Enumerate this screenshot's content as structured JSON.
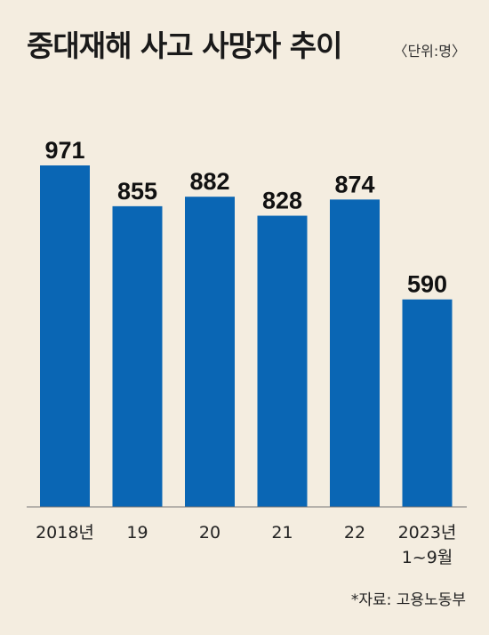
{
  "chart_data": {
    "type": "bar",
    "title": "중대재해 사고 사망자 추이",
    "unit": "〈단위:명〉",
    "categories": [
      [
        "2018년"
      ],
      [
        "19"
      ],
      [
        "20"
      ],
      [
        "21"
      ],
      [
        "22"
      ],
      [
        "2023년",
        "1~9월"
      ]
    ],
    "values": [
      971,
      855,
      882,
      828,
      874,
      590
    ],
    "ylim": [
      0,
      1000
    ],
    "grid": false,
    "bar_color": "#0a66b4",
    "background_color": "#f4ede0"
  },
  "source": "*자료: 고용노동부"
}
